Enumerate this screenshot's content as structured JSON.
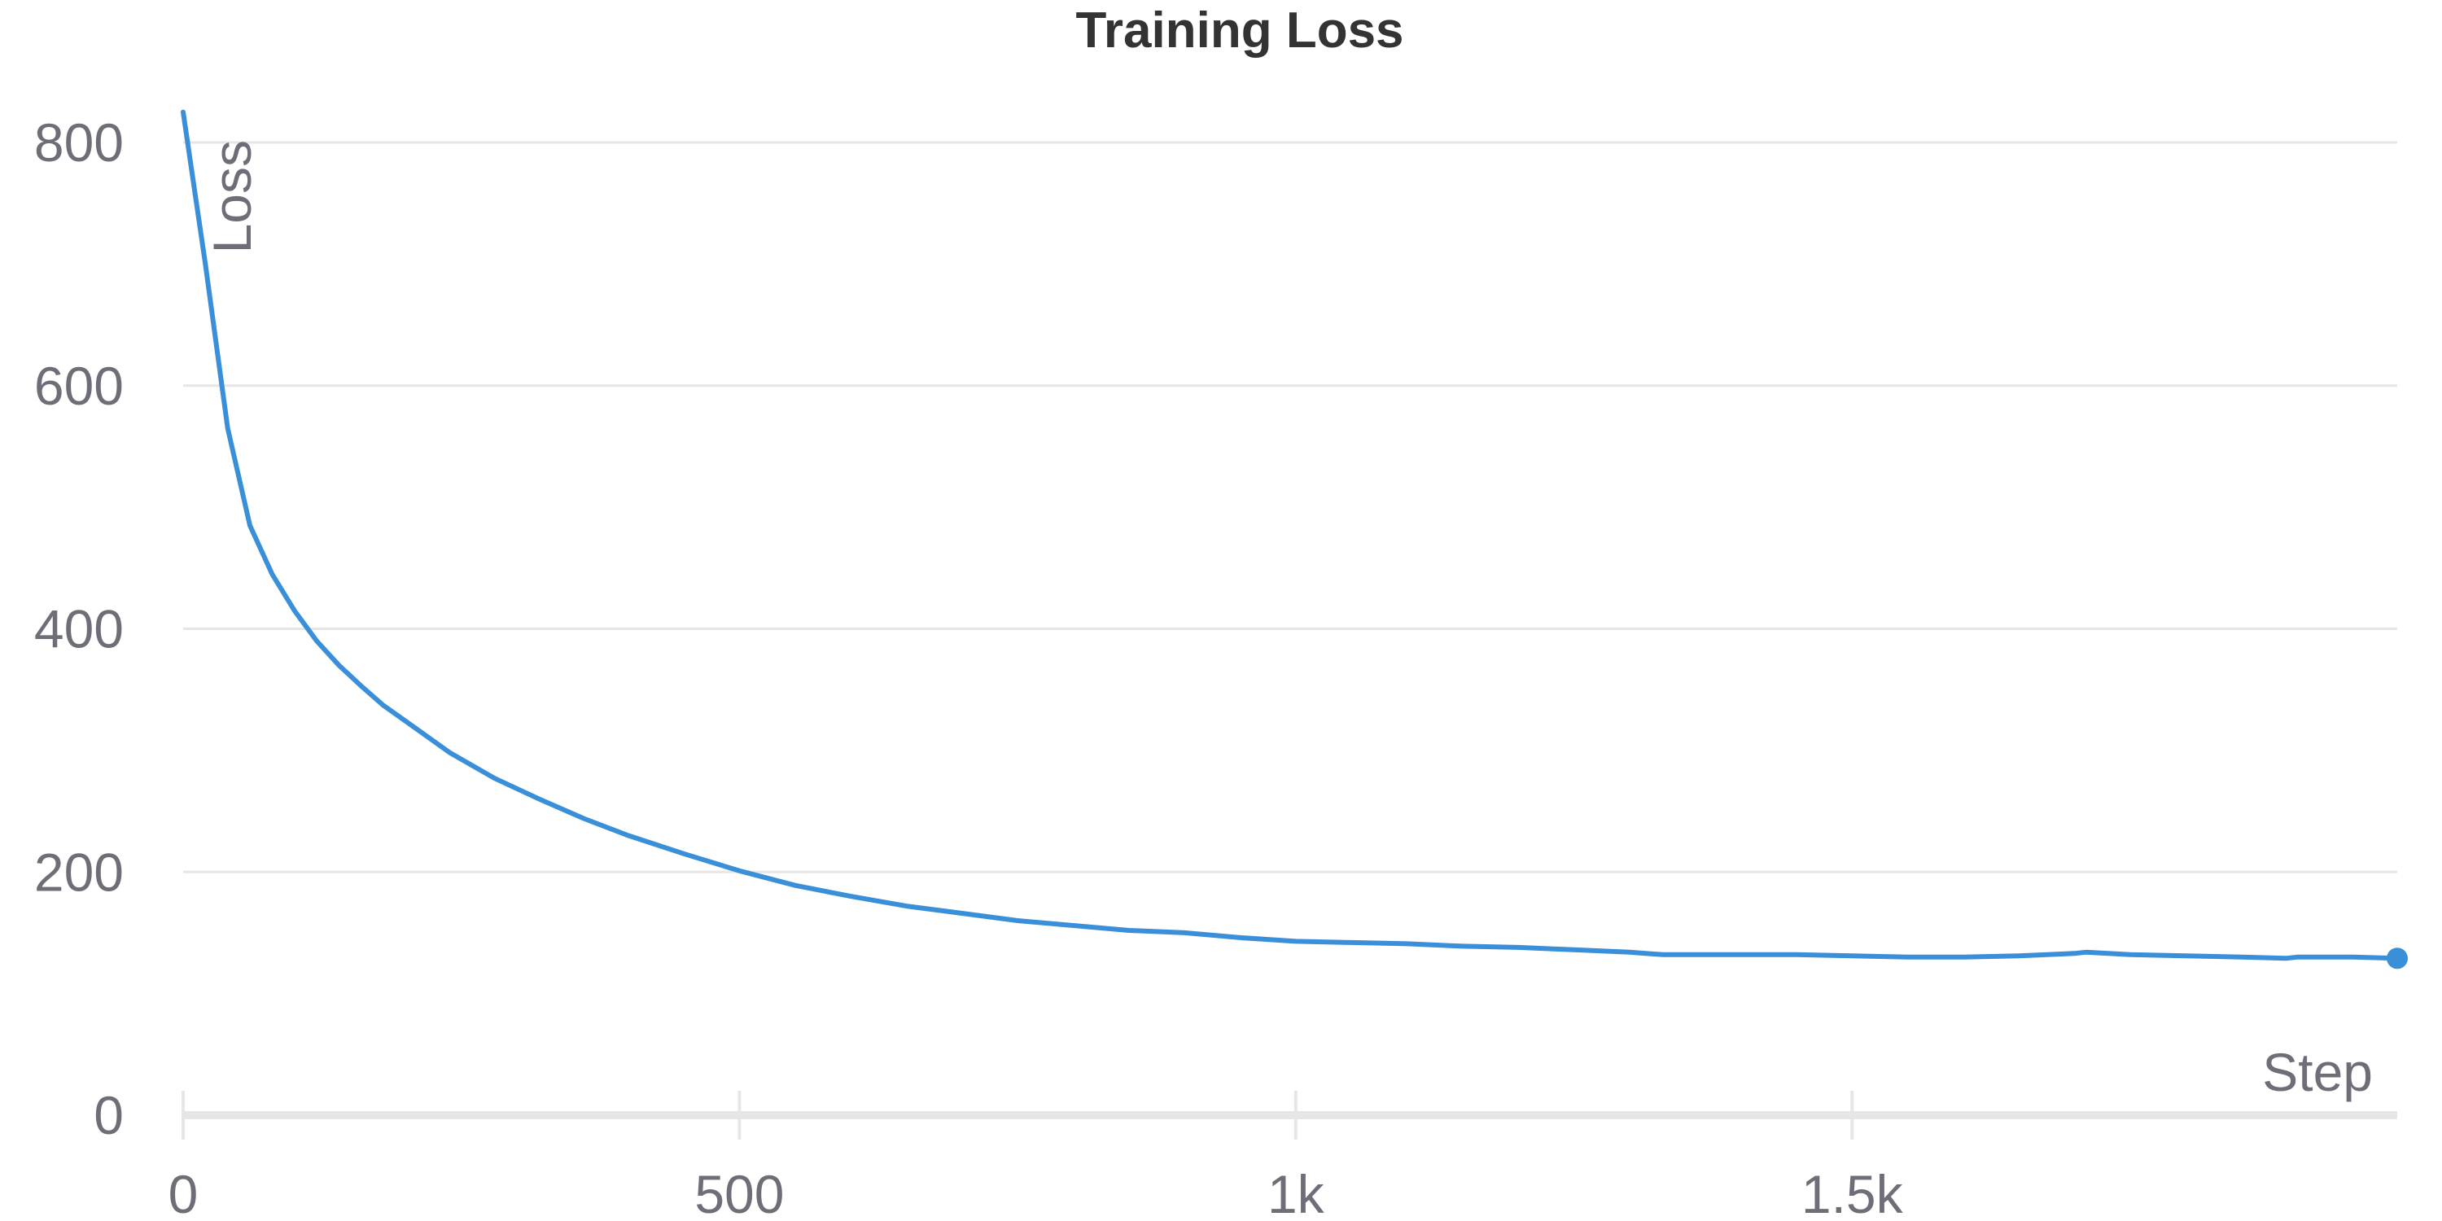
{
  "colors": {
    "series": "#3a8fd9"
  },
  "chart_data": {
    "type": "line",
    "title": "Training Loss",
    "xlabel": "Step",
    "ylabel": "Loss",
    "xlim": [
      0,
      1990
    ],
    "ylim": [
      0,
      800
    ],
    "x_ticks": [
      0,
      500,
      1000,
      1500
    ],
    "x_tick_labels": [
      "0",
      "500",
      "1k",
      "1.5k"
    ],
    "y_ticks": [
      0,
      200,
      400,
      600,
      800
    ],
    "y_tick_labels": [
      "0",
      "200",
      "400",
      "600",
      "800"
    ],
    "grid": true,
    "end_marker": true,
    "series": [
      {
        "x": [
          0,
          20,
          40,
          60,
          80,
          100,
          120,
          140,
          160,
          180,
          200,
          240,
          280,
          320,
          360,
          400,
          450,
          500,
          550,
          600,
          650,
          700,
          750,
          800,
          850,
          900,
          950,
          1000,
          1050,
          1100,
          1150,
          1200,
          1250,
          1300,
          1330,
          1350,
          1400,
          1450,
          1500,
          1550,
          1600,
          1650,
          1700,
          1710,
          1750,
          1800,
          1850,
          1890,
          1900,
          1950,
          1990
        ],
        "y": [
          825,
          700,
          565,
          485,
          445,
          415,
          390,
          370,
          353,
          337,
          324,
          298,
          277,
          260,
          244,
          230,
          215,
          201,
          189,
          180,
          172,
          166,
          160,
          156,
          152,
          150,
          146,
          143,
          142,
          141,
          139,
          138,
          136,
          134,
          132,
          132,
          132,
          132,
          131,
          130,
          130,
          131,
          133,
          134,
          132,
          131,
          130,
          129,
          130,
          130,
          129
        ]
      }
    ]
  }
}
